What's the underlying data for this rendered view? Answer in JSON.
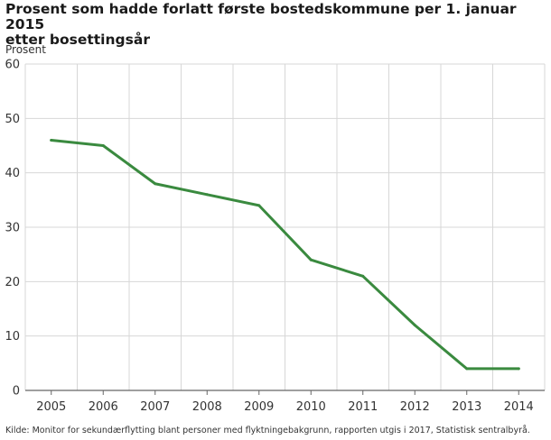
{
  "title": {
    "line1": "Prosent som hadde forlatt første bostedskommune per 1. januar 2015",
    "line2": "etter bosettingsår"
  },
  "source": "Kilde: Monitor for sekundærflytting blant personer med flyktningebakgrunn, rapporten utgis i 2017, Statistisk sentralbyrå.",
  "colors": {
    "line": "#3a8a3f",
    "grid": "#d7d7d7",
    "axis": "#666666"
  },
  "chart_data": {
    "type": "line",
    "title": "Prosent som hadde forlatt første bostedskommune per 1. januar 2015 etter bosettingsår",
    "ylabel": "Prosent",
    "xlabel": "",
    "categories": [
      "2005",
      "2006",
      "2007",
      "2008",
      "2009",
      "2010",
      "2011",
      "2012",
      "2013",
      "2014"
    ],
    "values": [
      46,
      45,
      38,
      36,
      34,
      24,
      21,
      12,
      4,
      4
    ],
    "ylim": [
      0,
      60
    ],
    "yticks": [
      0,
      10,
      20,
      30,
      40,
      50,
      60
    ],
    "grid": true,
    "legend": "none"
  }
}
